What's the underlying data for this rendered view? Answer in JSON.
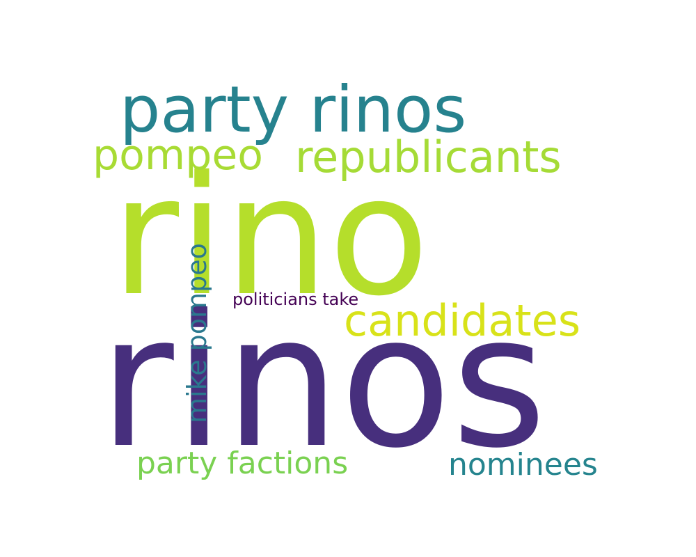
{
  "words": [
    {
      "text": "rino",
      "color": "#b5de2b"
    },
    {
      "text": "rinos",
      "color": "#472f7d"
    },
    {
      "text": "party rinos",
      "color": "#26828e"
    },
    {
      "text": "republicants",
      "color": "#a5db36"
    },
    {
      "text": "pompeo",
      "color": "#a8db34"
    },
    {
      "text": "candidates",
      "color": "#d8e219"
    },
    {
      "text": "mike pompeo",
      "color": "#2a788e"
    },
    {
      "text": "politicians take",
      "color": "#440154"
    },
    {
      "text": "party factions",
      "color": "#7ad151"
    },
    {
      "text": "nominees",
      "color": "#25848e"
    }
  ]
}
